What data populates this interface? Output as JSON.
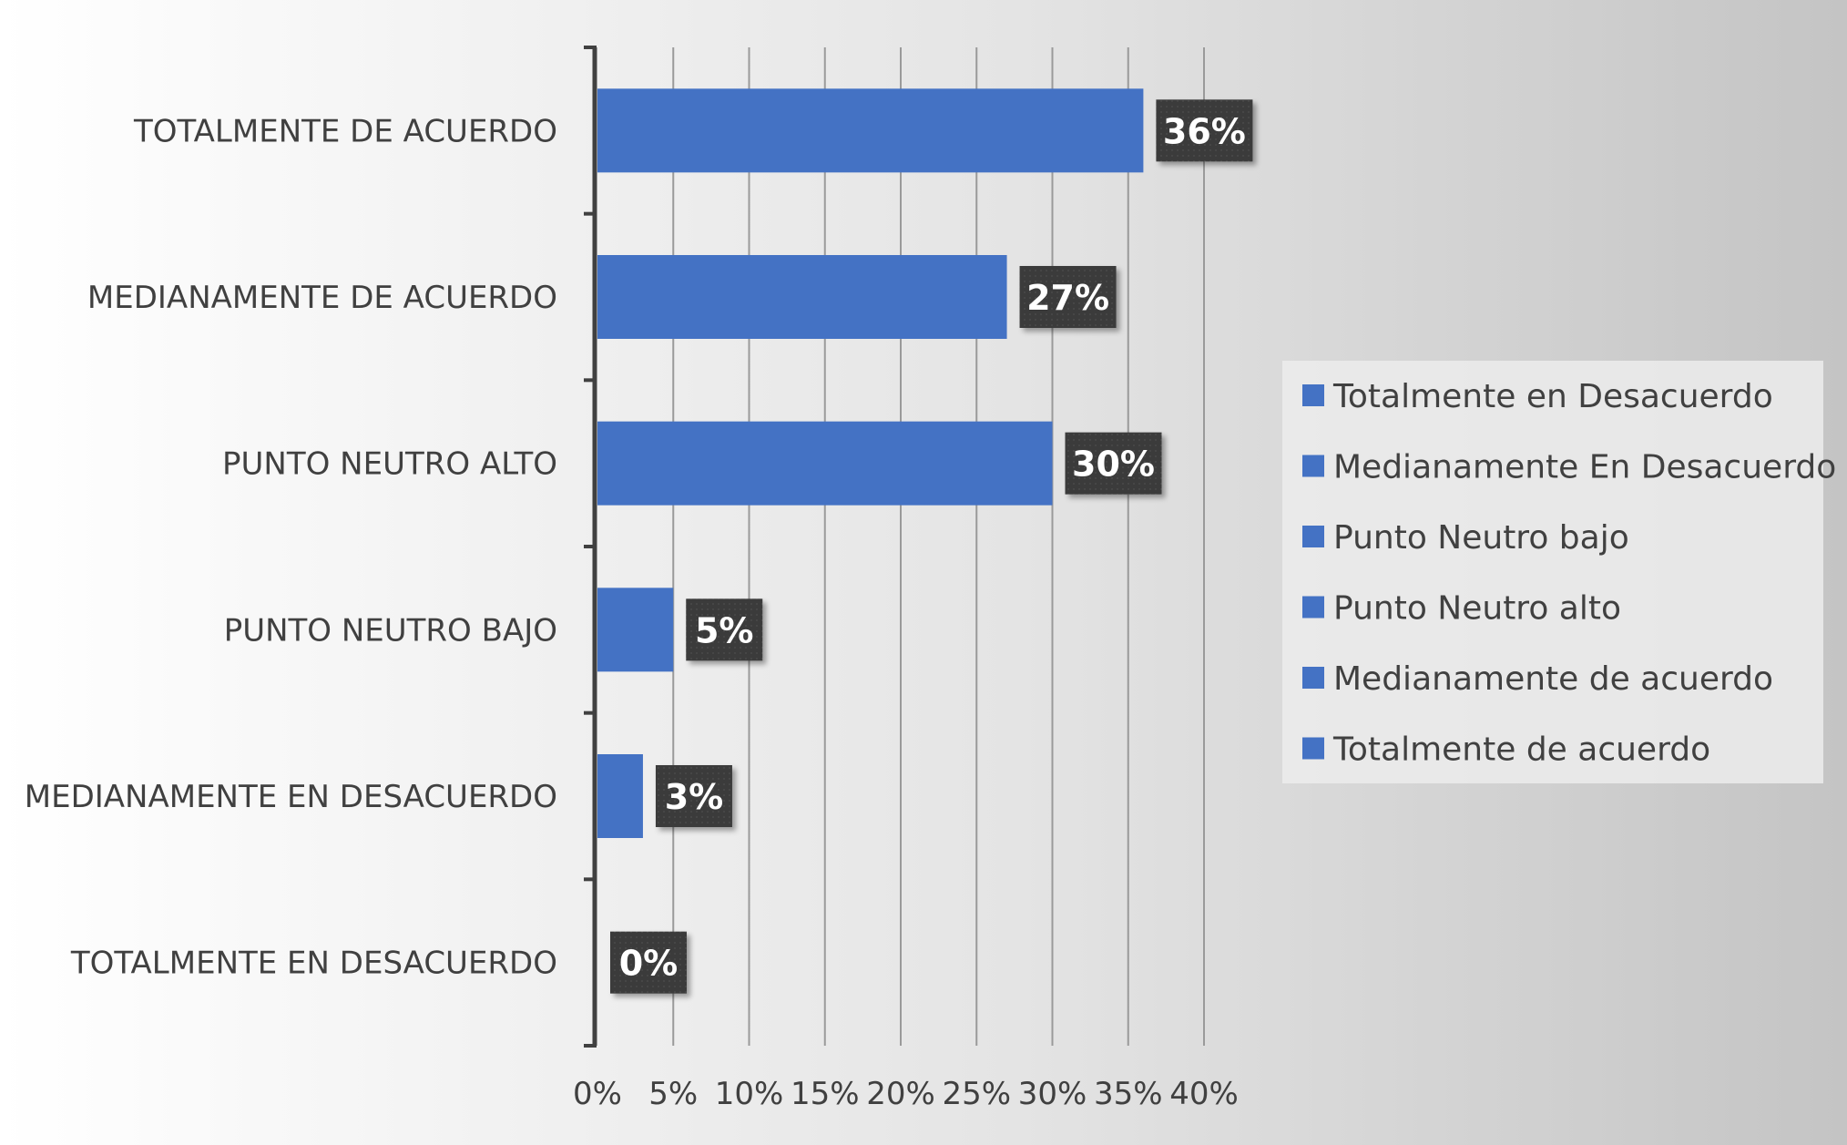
{
  "chart_data": {
    "type": "bar",
    "orientation": "horizontal",
    "categories": [
      "TOTALMENTE DE  ACUERDO",
      "MEDIANAMENTE DE ACUERDO",
      "PUNTO NEUTRO ALTO",
      "PUNTO NEUTRO BAJO",
      "MEDIANAMENTE EN DESACUERDO",
      "TOTALMENTE EN DESACUERDO"
    ],
    "values": [
      36,
      27,
      30,
      5,
      3,
      0
    ],
    "data_labels": [
      "36%",
      "27%",
      "30%",
      "5%",
      "3%",
      "0%"
    ],
    "xlim": [
      0,
      40
    ],
    "x_ticks": [
      0,
      5,
      10,
      15,
      20,
      25,
      30,
      35,
      40
    ],
    "x_tick_labels": [
      "0%",
      "5%",
      "10%",
      "15%",
      "20%",
      "25%",
      "30%",
      "35%",
      "40%"
    ],
    "grid": "vertical",
    "bar_color": "#4472C4",
    "legend_position": "right",
    "legend": [
      "Totalmente en Desacuerdo",
      "Medianamente En Desacuerdo",
      "Punto Neutro bajo",
      "Punto Neutro alto",
      "Medianamente de acuerdo",
      "Totalmente de  acuerdo"
    ]
  }
}
